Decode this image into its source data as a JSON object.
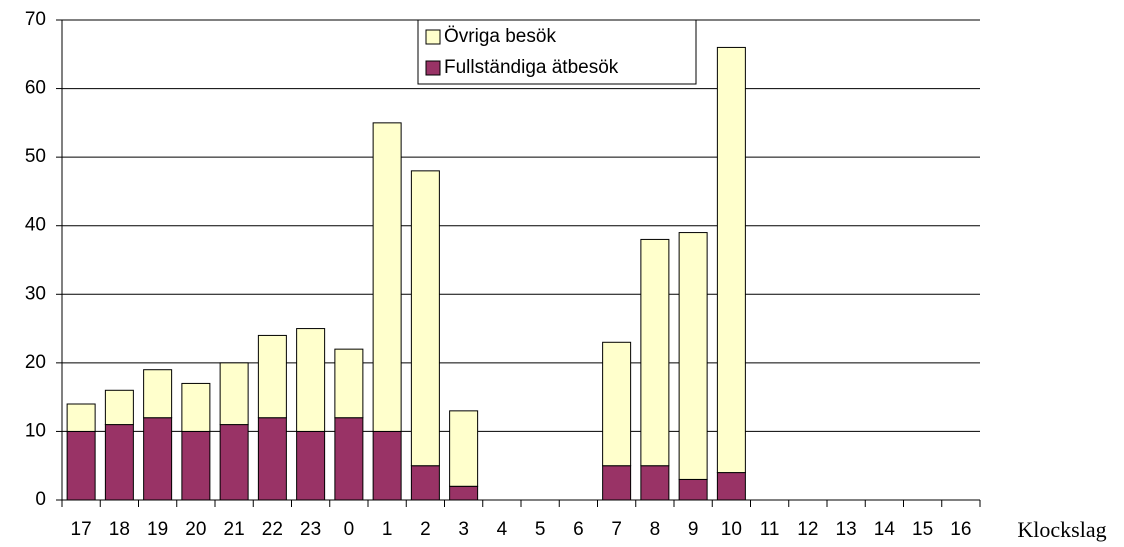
{
  "chart_data": {
    "type": "stacked_bar",
    "x_label": "Klockslag",
    "categories": [
      "17",
      "18",
      "19",
      "20",
      "21",
      "22",
      "23",
      "0",
      "1",
      "2",
      "3",
      "4",
      "5",
      "6",
      "7",
      "8",
      "9",
      "10",
      "11",
      "12",
      "13",
      "14",
      "15",
      "16"
    ],
    "series": [
      {
        "name": "Fullständiga ätbesök",
        "color": "#993366",
        "values": [
          10,
          11,
          12,
          10,
          11,
          12,
          10,
          12,
          10,
          5,
          2,
          0,
          0,
          0,
          5,
          5,
          3,
          4,
          0,
          0,
          0,
          0,
          0,
          0
        ]
      },
      {
        "name": "Övriga besök",
        "color": "#ffffcc",
        "values": [
          4,
          5,
          7,
          7,
          9,
          12,
          15,
          10,
          45,
          43,
          11,
          0,
          0,
          0,
          18,
          33,
          36,
          62,
          0,
          0,
          0,
          0,
          0,
          0
        ]
      }
    ],
    "ylim": [
      0,
      70
    ],
    "yticks": [
      0,
      10,
      20,
      30,
      40,
      50,
      60,
      70
    ],
    "grid": true
  }
}
